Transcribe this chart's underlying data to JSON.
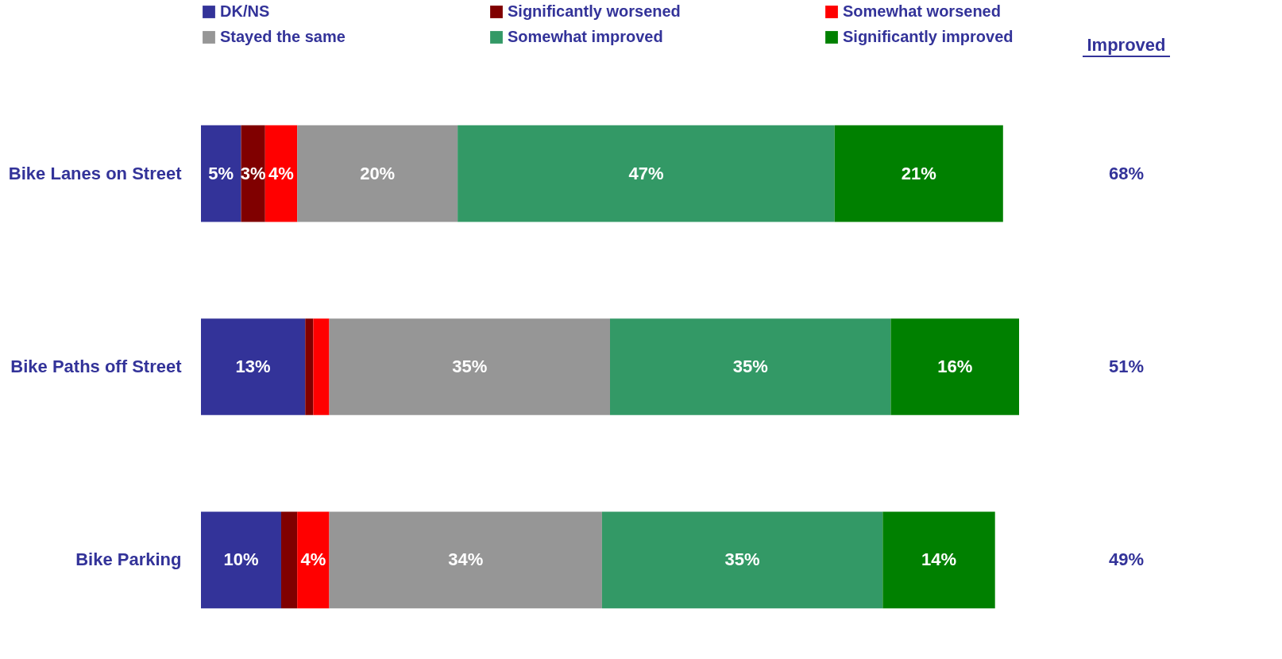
{
  "chart_data": {
    "type": "bar",
    "orientation": "horizontal",
    "stacked": true,
    "categories": [
      "Bike Lanes on Street",
      "Bike Paths off Street",
      "Bike Parking"
    ],
    "series": [
      {
        "name": "DK/NS",
        "color": "#333399",
        "values": [
          5,
          13,
          10
        ],
        "value_labels": [
          "5%",
          "13%",
          "10%"
        ]
      },
      {
        "name": "Significantly worsened",
        "color": "#800000",
        "values": [
          3,
          1,
          2
        ],
        "value_labels": [
          "3%",
          null,
          null
        ]
      },
      {
        "name": "Somewhat worsened",
        "color": "#ff0000",
        "values": [
          4,
          2,
          4
        ],
        "value_labels": [
          "4%",
          null,
          "4%"
        ]
      },
      {
        "name": "Stayed the same",
        "color": "#969696",
        "values": [
          20,
          35,
          34
        ],
        "value_labels": [
          "20%",
          "35%",
          "34%"
        ]
      },
      {
        "name": "Somewhat improved",
        "color": "#339966",
        "values": [
          47,
          35,
          35
        ],
        "value_labels": [
          "47%",
          "35%",
          "35%"
        ]
      },
      {
        "name": "Significantly improved",
        "color": "#008000",
        "values": [
          21,
          16,
          14
        ],
        "value_labels": [
          "21%",
          "16%",
          "14%"
        ]
      }
    ],
    "annotations": [
      "Improved",
      "68%",
      "51%",
      "49%"
    ],
    "legend": "top",
    "grid": false
  }
}
